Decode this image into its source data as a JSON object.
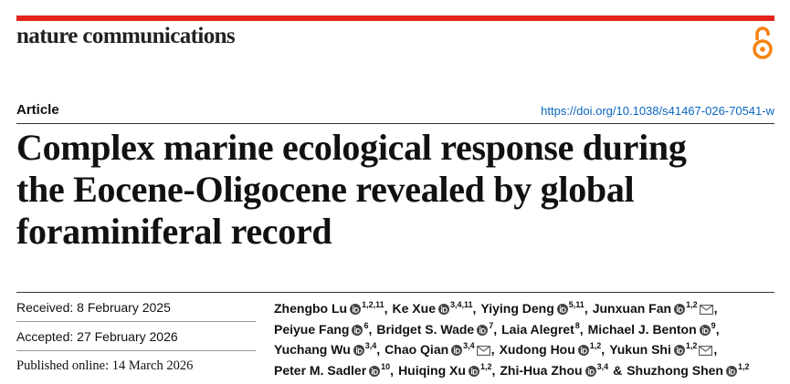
{
  "header": {
    "journal": "nature communications",
    "type": "Article",
    "doi": "https://doi.org/10.1038/s41467-026-70541-w"
  },
  "title": [
    "Complex marine ecological response during",
    "the Eocene-Oligocene revealed by global",
    "foraminiferal record"
  ],
  "dates": {
    "received": "Received: 8 February 2025",
    "accepted": "Accepted: 27 February 2026",
    "published": "Published online: 14 March 2026"
  },
  "author_lines": [
    [
      {
        "name": "Zhengbo Lu",
        "orcid": true,
        "affiliations": "1,2,11",
        "separator": ","
      },
      {
        "name": "Ke Xue",
        "orcid": true,
        "affiliations": "3,4,11",
        "separator": ","
      },
      {
        "name": "Yiying Deng",
        "orcid": true,
        "affiliations": "5,11",
        "separator": ","
      },
      {
        "name": "Junxuan Fan",
        "orcid": true,
        "affiliations": "1,2",
        "corresponding": true,
        "separator": ","
      }
    ],
    [
      {
        "name": "Peiyue Fang",
        "orcid": true,
        "affiliations": "6",
        "separator": ","
      },
      {
        "name": "Bridget S. Wade",
        "orcid": true,
        "affiliations": "7",
        "separator": ","
      },
      {
        "name": "Laia Alegret",
        "orcid": false,
        "affiliations": "8",
        "separator": ","
      },
      {
        "name": "Michael J. Benton",
        "orcid": true,
        "affiliations": "9",
        "separator": ","
      }
    ],
    [
      {
        "name": "Yuchang Wu",
        "orcid": true,
        "affiliations": "3,4",
        "separator": ","
      },
      {
        "name": "Chao Qian",
        "orcid": true,
        "affiliations": "3,4",
        "corresponding": true,
        "separator": ","
      },
      {
        "name": "Xudong Hou",
        "orcid": true,
        "affiliations": "1,2",
        "separator": ","
      },
      {
        "name": "Yukun Shi",
        "orcid": true,
        "affiliations": "1,2",
        "corresponding": true,
        "separator": ","
      }
    ],
    [
      {
        "name": "Peter M. Sadler",
        "orcid": true,
        "affiliations": "10",
        "separator": ","
      },
      {
        "name": "Huiqing Xu",
        "orcid": true,
        "affiliations": "1,2",
        "separator": ","
      },
      {
        "name": "Zhi-Hua Zhou",
        "orcid": true,
        "affiliations": "3,4",
        "separator": "&"
      },
      {
        "name": "Shuzhong Shen",
        "orcid": true,
        "affiliations": "1,2"
      }
    ]
  ]
}
